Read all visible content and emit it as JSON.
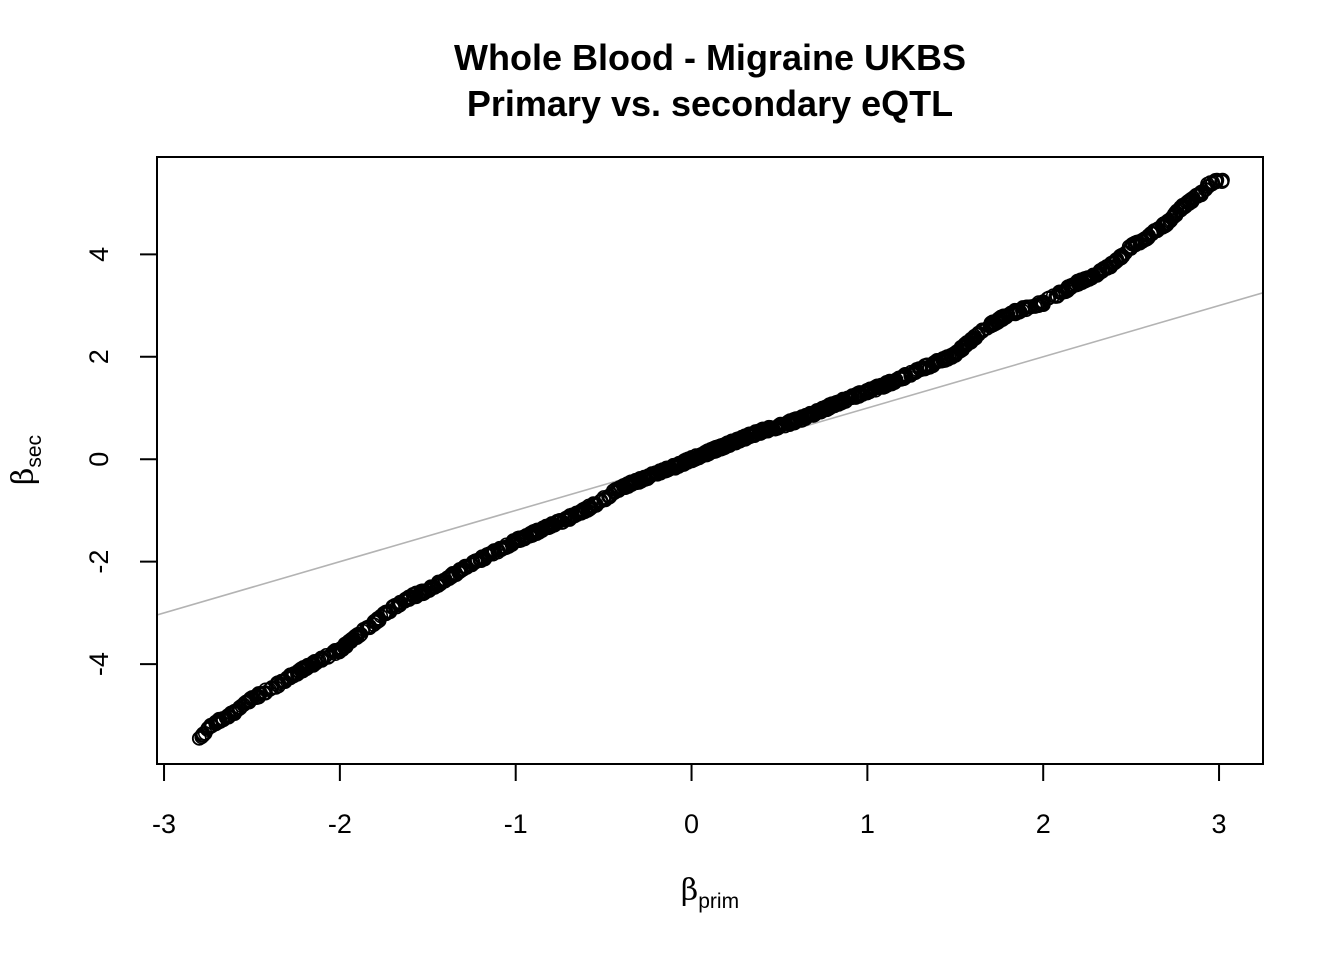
{
  "chart_data": {
    "type": "scatter",
    "title": "Whole Blood - Migraine UKBS",
    "subtitle": "Primary vs. secondary eQTL",
    "xlabel": {
      "symbol": "β",
      "subscript": "prim"
    },
    "ylabel": {
      "symbol": "β",
      "subscript": "sec"
    },
    "xlim": [
      -3.04,
      3.25
    ],
    "ylim": [
      -5.95,
      5.9
    ],
    "xticks": [
      -3,
      -2,
      -1,
      0,
      1,
      2,
      3
    ],
    "yticks": [
      -4,
      -2,
      0,
      2,
      4
    ],
    "grid": false,
    "legend": "none",
    "point_style": "open-circle",
    "point_color": "#000000",
    "reference_line": {
      "slope": 1,
      "intercept": 0,
      "color": "#b3b3b3"
    },
    "curve": {
      "description_points": [
        {
          "x": -2.8,
          "y": -5.45
        },
        {
          "x": -2.75,
          "y": -5.25
        },
        {
          "x": -2.7,
          "y": -5.12
        },
        {
          "x": -2.6,
          "y": -4.95
        },
        {
          "x": -2.5,
          "y": -4.68
        },
        {
          "x": -2.4,
          "y": -4.5
        },
        {
          "x": -2.3,
          "y": -4.28
        },
        {
          "x": -2.2,
          "y": -4.08
        },
        {
          "x": -2.1,
          "y": -3.9
        },
        {
          "x": -2.0,
          "y": -3.72
        },
        {
          "x": -1.9,
          "y": -3.45
        },
        {
          "x": -1.8,
          "y": -3.18
        },
        {
          "x": -1.7,
          "y": -2.9
        },
        {
          "x": -1.6,
          "y": -2.7
        },
        {
          "x": -1.5,
          "y": -2.55
        },
        {
          "x": -1.4,
          "y": -2.35
        },
        {
          "x": -1.3,
          "y": -2.15
        },
        {
          "x": -1.2,
          "y": -1.95
        },
        {
          "x": -1.1,
          "y": -1.78
        },
        {
          "x": -1.0,
          "y": -1.6
        },
        {
          "x": -0.9,
          "y": -1.45
        },
        {
          "x": -0.8,
          "y": -1.3
        },
        {
          "x": -0.7,
          "y": -1.15
        },
        {
          "x": -0.6,
          "y": -0.98
        },
        {
          "x": -0.5,
          "y": -0.78
        },
        {
          "x": -0.4,
          "y": -0.55
        },
        {
          "x": -0.3,
          "y": -0.42
        },
        {
          "x": -0.2,
          "y": -0.28
        },
        {
          "x": -0.1,
          "y": -0.15
        },
        {
          "x": 0.0,
          "y": 0.0
        },
        {
          "x": 0.1,
          "y": 0.14
        },
        {
          "x": 0.2,
          "y": 0.28
        },
        {
          "x": 0.3,
          "y": 0.42
        },
        {
          "x": 0.4,
          "y": 0.55
        },
        {
          "x": 0.5,
          "y": 0.65
        },
        {
          "x": 0.6,
          "y": 0.76
        },
        {
          "x": 0.7,
          "y": 0.9
        },
        {
          "x": 0.8,
          "y": 1.05
        },
        {
          "x": 0.9,
          "y": 1.2
        },
        {
          "x": 1.0,
          "y": 1.32
        },
        {
          "x": 1.1,
          "y": 1.45
        },
        {
          "x": 1.2,
          "y": 1.6
        },
        {
          "x": 1.3,
          "y": 1.75
        },
        {
          "x": 1.4,
          "y": 1.9
        },
        {
          "x": 1.5,
          "y": 2.05
        },
        {
          "x": 1.6,
          "y": 2.35
        },
        {
          "x": 1.7,
          "y": 2.62
        },
        {
          "x": 1.8,
          "y": 2.82
        },
        {
          "x": 1.9,
          "y": 2.95
        },
        {
          "x": 2.0,
          "y": 3.05
        },
        {
          "x": 2.1,
          "y": 3.25
        },
        {
          "x": 2.2,
          "y": 3.45
        },
        {
          "x": 2.3,
          "y": 3.6
        },
        {
          "x": 2.4,
          "y": 3.82
        },
        {
          "x": 2.5,
          "y": 4.15
        },
        {
          "x": 2.6,
          "y": 4.35
        },
        {
          "x": 2.7,
          "y": 4.6
        },
        {
          "x": 2.8,
          "y": 4.95
        },
        {
          "x": 2.9,
          "y": 5.2
        },
        {
          "x": 2.95,
          "y": 5.4
        },
        {
          "x": 3.02,
          "y": 5.45
        }
      ]
    }
  }
}
